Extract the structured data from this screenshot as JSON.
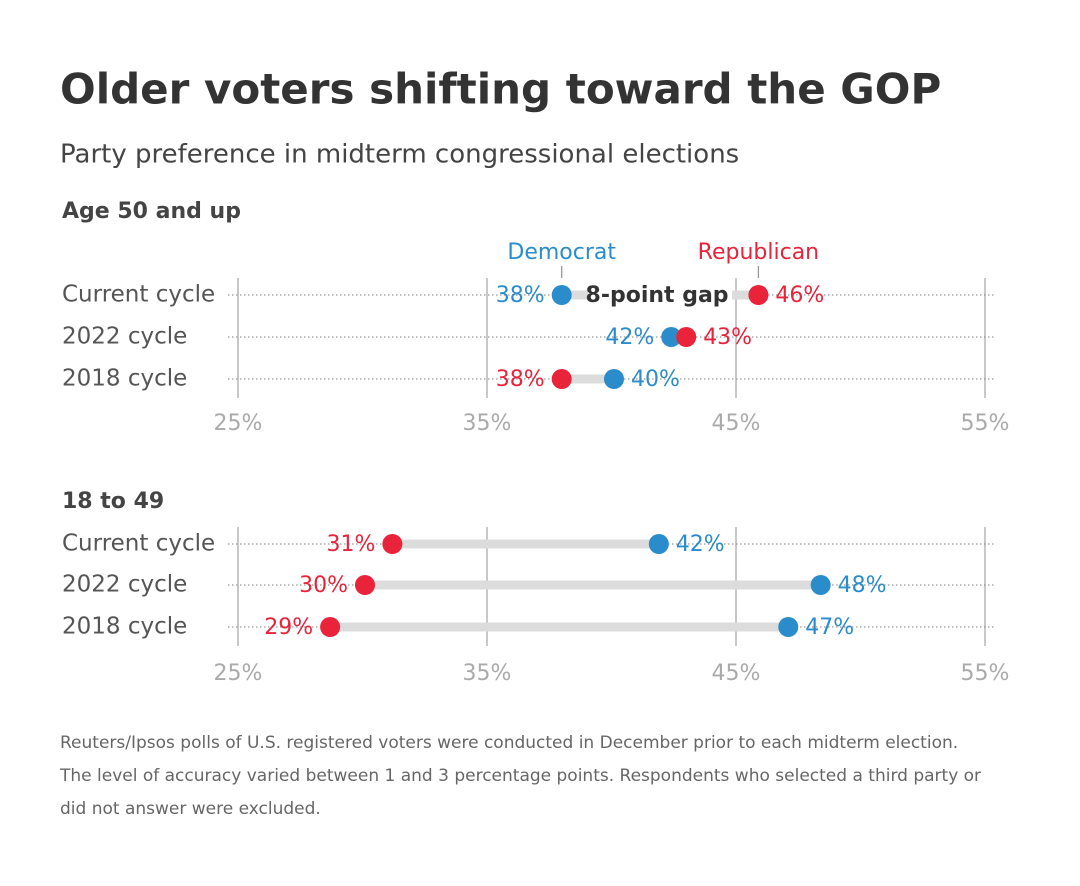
{
  "title": "Older voters shifting toward the GOP",
  "subtitle": "Party preference in midterm congressional elections",
  "note": [
    "Reuters/Ipsos polls of U.S. registered voters were conducted in December prior to each midterm election.",
    "The level of accuracy varied between 1 and 3 percentage points. Respondents who selected a third party or",
    "did not answer were excluded."
  ],
  "chart_data": [
    {
      "type": "dumbbell",
      "title": "Age 50 and up",
      "categories": [
        "Current cycle",
        "2022 cycle",
        "2018 cycle"
      ],
      "series": [
        {
          "name": "Democrat",
          "color": "#2b8ccc",
          "values": [
            38.0,
            42.4,
            40.1
          ],
          "value_labels": [
            "38%",
            "42%",
            "40%"
          ]
        },
        {
          "name": "Republican",
          "color": "#e8233a",
          "values": [
            45.9,
            43.0,
            38.0
          ],
          "value_labels": [
            "46%",
            "43%",
            "38%"
          ]
        }
      ],
      "annotation": "8-point gap",
      "legend": true,
      "xlim": [
        25,
        55
      ],
      "xticks": [
        {
          "value": 25,
          "label": "25%"
        },
        {
          "value": 35,
          "label": "35%"
        },
        {
          "value": 45,
          "label": "45%"
        },
        {
          "value": 55,
          "label": "55%"
        }
      ]
    },
    {
      "type": "dumbbell",
      "title": "18 to 49",
      "categories": [
        "Current cycle",
        "2022 cycle",
        "2018 cycle"
      ],
      "series": [
        {
          "name": "Democrat",
          "color": "#2b8ccc",
          "values": [
            41.9,
            48.4,
            47.1
          ],
          "value_labels": [
            "42%",
            "48%",
            "47%"
          ]
        },
        {
          "name": "Republican",
          "color": "#e8233a",
          "values": [
            31.2,
            30.1,
            28.7
          ],
          "value_labels": [
            "31%",
            "30%",
            "29%"
          ]
        }
      ],
      "legend": false,
      "xlim": [
        25,
        55
      ],
      "xticks": [
        {
          "value": 25,
          "label": "25%"
        },
        {
          "value": 35,
          "label": "35%"
        },
        {
          "value": 45,
          "label": "45%"
        },
        {
          "value": 55,
          "label": "55%"
        }
      ]
    }
  ]
}
